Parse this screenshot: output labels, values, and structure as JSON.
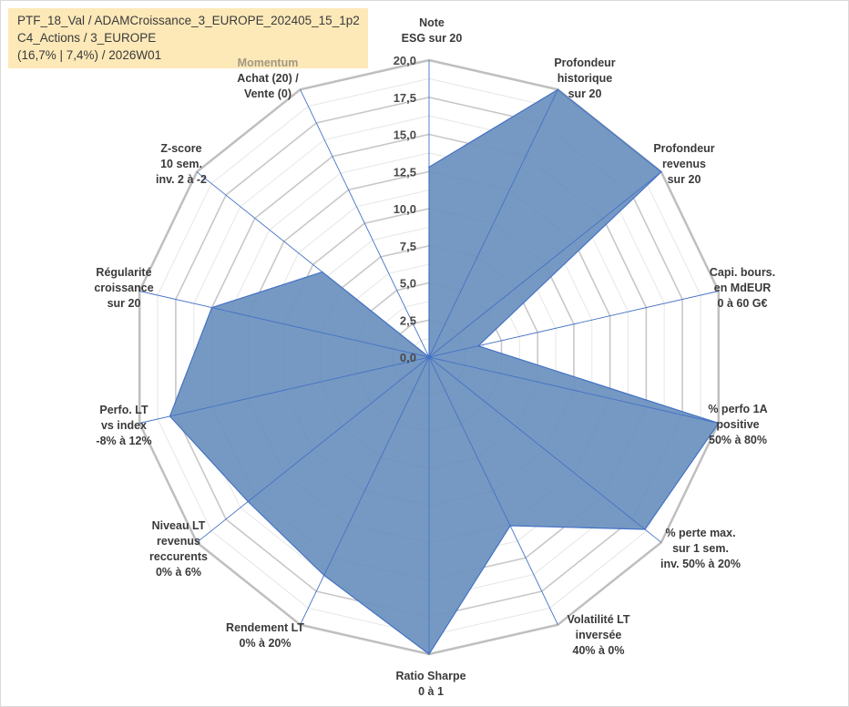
{
  "info": {
    "line1": "PTF_18_Val / ADAMCroissance_3_EUROPE_202405_15_1p2",
    "line2": "C4_Actions / 3_EUROPE",
    "line3": "(16,7% | 7,4%) / 2026W01"
  },
  "colors": {
    "fill": "#6f93c0",
    "stroke": "#4472c4",
    "outer_ring": "#bfbfbf",
    "inner_ring": "#d9d9d9",
    "spoke": "#4472c4"
  },
  "chart_data": {
    "type": "radar",
    "range": [
      0,
      20
    ],
    "tick_step": 2.5,
    "ticks": [
      "0,0",
      "2,5",
      "5,0",
      "7,5",
      "10,0",
      "12,5",
      "15,0",
      "17,5",
      "20,0"
    ],
    "grid": true,
    "axes": [
      {
        "lines": [
          "Note",
          "ESG sur 20"
        ],
        "value": 12.8
      },
      {
        "lines": [
          "Profondeur",
          "historique",
          "sur 20"
        ],
        "value": 20
      },
      {
        "lines": [
          "Profondeur",
          "revenus",
          "sur 20"
        ],
        "value": 20
      },
      {
        "lines": [
          "Capi. bours.",
          "en MdEUR",
          "0 à 60 G€"
        ],
        "value": 3.4
      },
      {
        "lines": [
          "% perfo 1A",
          "positive",
          "50% à 80%"
        ],
        "value": 20
      },
      {
        "lines": [
          "% perte max.",
          "sur 1 sem.",
          "inv. 50% à 20%"
        ],
        "value": 18.6
      },
      {
        "lines": [
          "Volatilité LT",
          "inversée",
          "40% à 0%"
        ],
        "value": 12.6
      },
      {
        "lines": [
          "Ratio Sharpe",
          "0 à 1"
        ],
        "value": 20
      },
      {
        "lines": [
          "Rendement LT",
          "0% à 20%"
        ],
        "value": 16.3
      },
      {
        "lines": [
          "Niveau LT",
          "revenus",
          "reccurents",
          "0% à 6%"
        ],
        "value": 15.6
      },
      {
        "lines": [
          "Perfo. LT",
          "vs index",
          "-8% à 12%"
        ],
        "value": 17.9
      },
      {
        "lines": [
          "Régularité",
          "croissance",
          "sur 20"
        ],
        "value": 15
      },
      {
        "lines": [
          "Z-score",
          "10 sem.",
          "inv. 2 à -2"
        ],
        "value": 9.2
      },
      {
        "lines": [
          "Momentum",
          "Achat (20) /",
          "Vente (0)"
        ],
        "value": 0
      }
    ]
  }
}
